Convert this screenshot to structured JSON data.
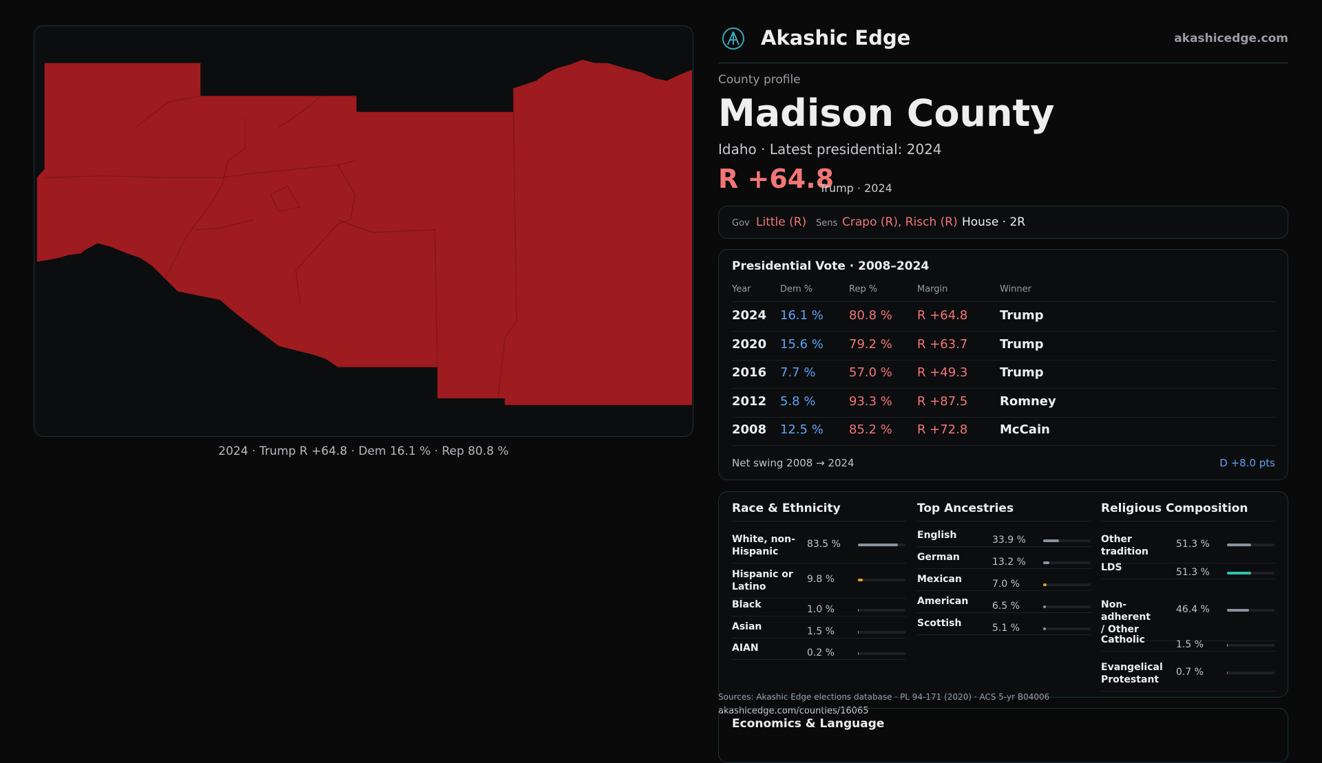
{
  "header": {
    "brand": "Akashic Edge",
    "site": "akashicedge.com"
  },
  "map_caption": "2024 · Trump R +64.8 · Dem 16.1 % · Rep 80.8 %",
  "profile": {
    "kicker": "County profile",
    "title": "Madison County",
    "subtitle": "Idaho · Latest presidential: 2024",
    "margin": "R +64.8",
    "margin_note": "Trump · 2024"
  },
  "officials": {
    "gov_label": "Gov",
    "gov": "Little (R)",
    "sens_label": "Sens",
    "sens": "Crapo (R), Risch (R)",
    "house": "House · 2R"
  },
  "vote": {
    "title": "Presidential Vote · 2008–2024",
    "columns": [
      "Year",
      "Dem %",
      "Rep %",
      "Margin",
      "Winner"
    ],
    "rows": [
      [
        "2024",
        "16.1 %",
        "80.8 %",
        "R +64.8",
        "Trump"
      ],
      [
        "2020",
        "15.6 %",
        "79.2 %",
        "R +63.7",
        "Trump"
      ],
      [
        "2016",
        "7.7 %",
        "57.0 %",
        "R +49.3",
        "Trump"
      ],
      [
        "2012",
        "5.8 %",
        "93.3 %",
        "R +87.5",
        "Romney"
      ],
      [
        "2008",
        "12.5 %",
        "85.2 %",
        "R +72.8",
        "McCain"
      ]
    ],
    "swing_label": "Net swing 2008 → 2024",
    "swing_value": "D +8.0 pts"
  },
  "demographics": [
    {
      "title": "Race & Ethnicity",
      "items": [
        {
          "name": "White, non-Hispanic",
          "value": 83.5,
          "label": "83.5 %",
          "color": "#8a919e"
        },
        {
          "name": "Hispanic or Latino",
          "value": 9.8,
          "label": "9.8 %",
          "color": "#e0a030"
        },
        {
          "name": "Black",
          "value": 1.0,
          "label": "1.0 %",
          "color": "#8a919e"
        },
        {
          "name": "Asian",
          "value": 1.5,
          "label": "1.5 %",
          "color": "#2ec4a8"
        },
        {
          "name": "AIAN",
          "value": 0.2,
          "label": "0.2 %",
          "color": "#8a919e"
        }
      ]
    },
    {
      "title": "Top Ancestries",
      "items": [
        {
          "name": "English",
          "value": 33.9,
          "label": "33.9 %",
          "color": "#8a919e"
        },
        {
          "name": "German",
          "value": 13.2,
          "label": "13.2 %",
          "color": "#8a919e"
        },
        {
          "name": "Mexican",
          "value": 7.0,
          "label": "7.0 %",
          "color": "#e0a030"
        },
        {
          "name": "American",
          "value": 6.5,
          "label": "6.5 %",
          "color": "#8a919e"
        },
        {
          "name": "Scottish",
          "value": 5.1,
          "label": "5.1 %",
          "color": "#8a919e"
        }
      ]
    },
    {
      "title": "Religious Composition",
      "items": [
        {
          "name": "Other tradition",
          "value": 51.3,
          "label": "51.3 %",
          "color": "#8a919e"
        },
        {
          "name": "LDS",
          "value": 51.3,
          "label": "51.3 %",
          "color": "#2ec4a8"
        },
        {
          "name": "Non-adherent / Other",
          "value": 46.4,
          "label": "46.4 %",
          "color": "#8a919e"
        },
        {
          "name": "Catholic",
          "value": 1.5,
          "label": "1.5 %",
          "color": "#e0a030"
        },
        {
          "name": "Evangelical Protestant",
          "value": 0.7,
          "label": "0.7 %",
          "color": "#e06070"
        }
      ]
    }
  ],
  "footer": {
    "sources": "Sources: Akashic Edge elections database · PL 94-171 (2020) · ACS 5-yr B04006",
    "url": "akashicedge.com/counties/16065",
    "next_section": "Economics & Language"
  }
}
